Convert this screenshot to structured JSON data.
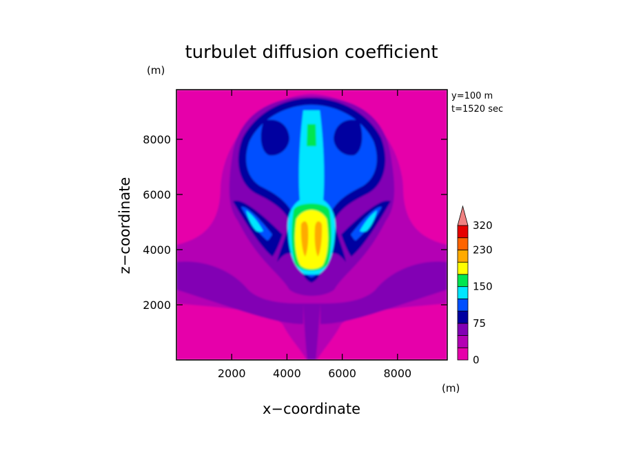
{
  "chart_data": {
    "type": "heatmap",
    "title": "turbulet diffusion coefficient",
    "xlabel": "x−coordinate",
    "ylabel": "z−coordinate",
    "xunit": "(m)",
    "yunit": "(m)",
    "annotations": [
      "y=100 m",
      "t=1520 sec"
    ],
    "xlim": [
      0,
      9800
    ],
    "ylim": [
      0,
      9800
    ],
    "xticks": [
      2000,
      4000,
      6000,
      8000
    ],
    "yticks": [
      2000,
      4000,
      6000,
      8000
    ],
    "colorbar": {
      "ticks": [
        0,
        75,
        150,
        230,
        320
      ],
      "levels": [
        {
          "color": "#e600aa"
        },
        {
          "color": "#b400b4"
        },
        {
          "color": "#8200b4"
        },
        {
          "color": "#0000a0"
        },
        {
          "color": "#0050ff"
        },
        {
          "color": "#00e6ff"
        },
        {
          "color": "#00e650"
        },
        {
          "color": "#ffff00"
        },
        {
          "color": "#ffaa00"
        },
        {
          "color": "#ff6400"
        },
        {
          "color": "#e60000"
        },
        {
          "color": "#f08282"
        }
      ],
      "extend": "max"
    }
  }
}
